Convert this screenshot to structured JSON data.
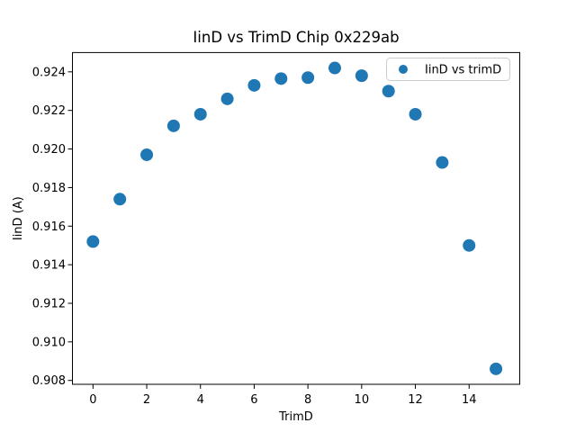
{
  "window": {
    "background": "#ffffff"
  },
  "chart_data": {
    "type": "scatter",
    "title": "IinD vs TrimD Chip 0x229ab",
    "xlabel": "TrimD",
    "ylabel": "IinD (A)",
    "legend": {
      "label": "IinD vs trimD",
      "position": "upper right"
    },
    "series": [
      {
        "name": "IinD vs trimD",
        "x": [
          0,
          1,
          2,
          3,
          4,
          5,
          6,
          7,
          8,
          9,
          10,
          11,
          12,
          13,
          14,
          15
        ],
        "y": [
          0.9152,
          0.9174,
          0.9197,
          0.9212,
          0.9218,
          0.9226,
          0.9233,
          0.92365,
          0.9237,
          0.9242,
          0.9238,
          0.923,
          0.9218,
          0.9193,
          0.915,
          0.9086
        ]
      }
    ],
    "xlim": [
      -0.765,
      15.885
    ],
    "ylim": [
      0.9078,
      0.925
    ],
    "xticks": [
      0,
      2,
      4,
      6,
      8,
      10,
      12,
      14
    ],
    "yticks": [
      0.908,
      0.91,
      0.912,
      0.914,
      0.916,
      0.918,
      0.92,
      0.922,
      0.924
    ],
    "ytick_decimals": 3,
    "grid": false,
    "marker": {
      "shape": "circle",
      "color": "#1f77b4",
      "radius_px": 7
    },
    "legend_marker_radius_px": 5,
    "axis_color": "#000000",
    "legend_border_color": "#cccccc"
  }
}
